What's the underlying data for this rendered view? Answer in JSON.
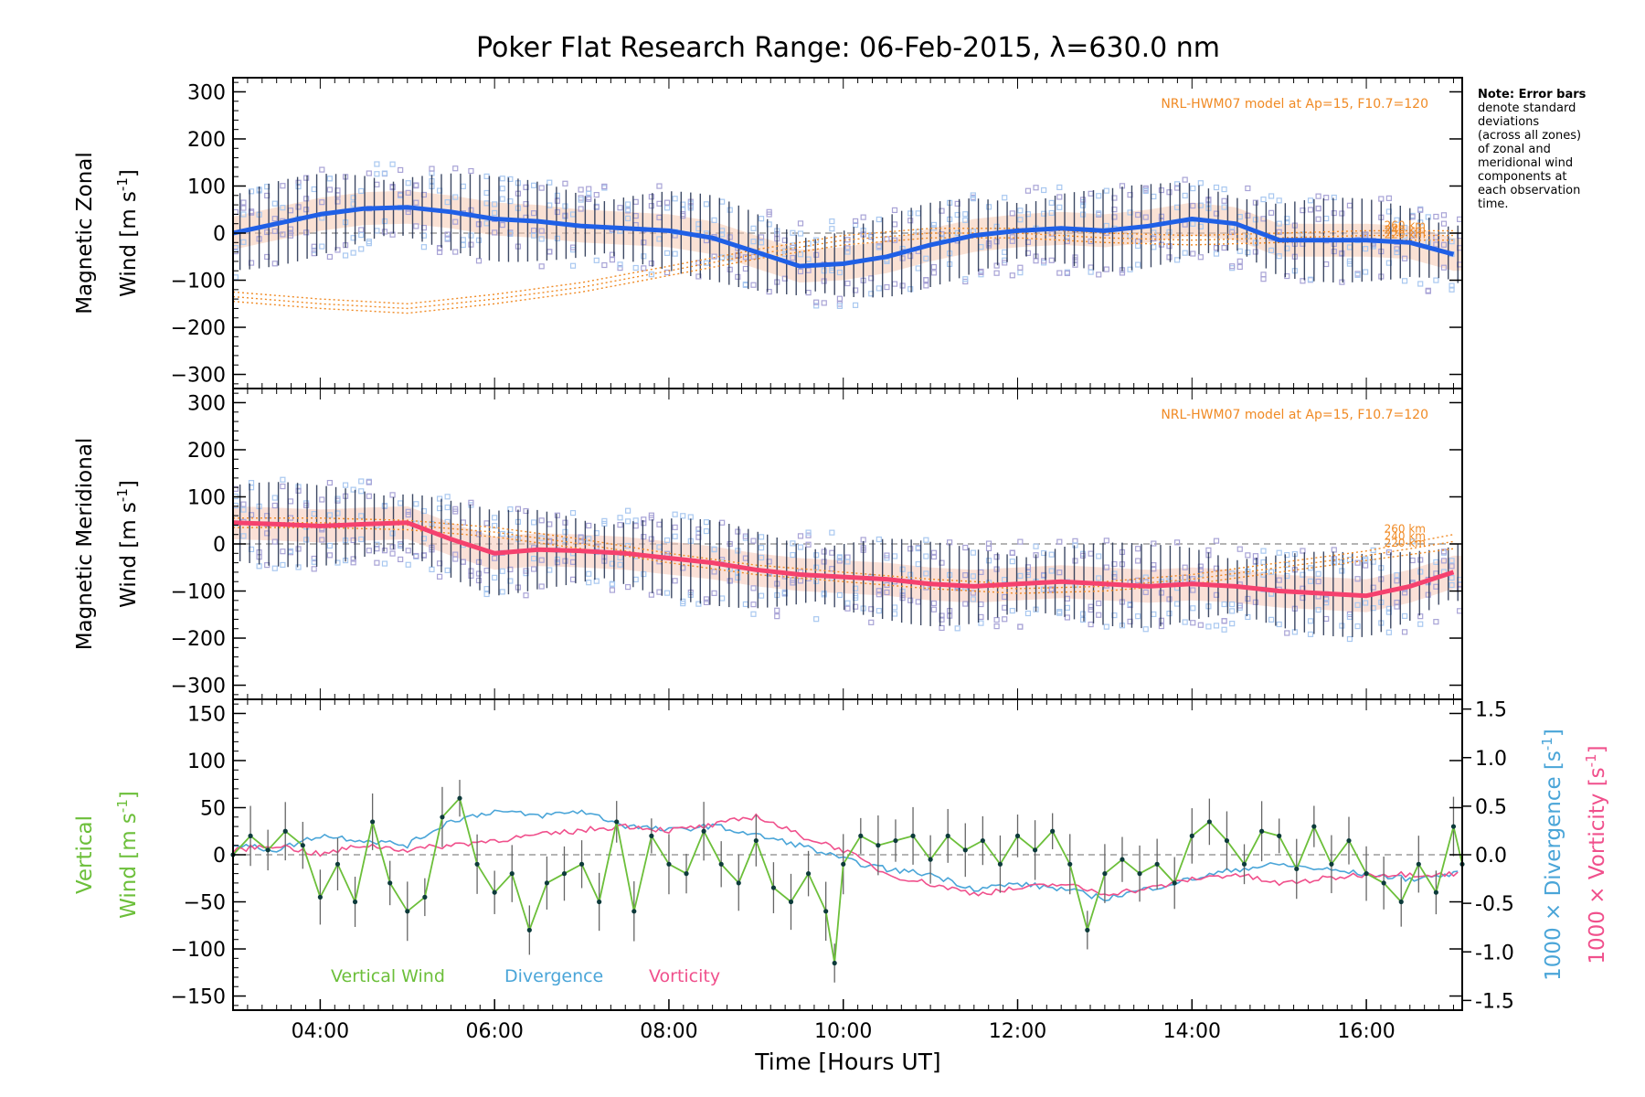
{
  "title": "Poker Flat Research Range: 06-Feb-2015, λ=630.0 nm",
  "note": [
    "Note: Error bars",
    "denote standard",
    "deviations",
    "(across all zones)",
    "of zonal and",
    "meridional wind",
    "components at",
    "each observation",
    "time."
  ],
  "colors": {
    "zonal_mean": "#1f5fe6",
    "meridional_mean": "#f5416e",
    "vertical": "#6cbf3a",
    "divergence": "#4aa5d8",
    "vorticity": "#f0508c",
    "model": "#f08a24",
    "scatter": "#a8a3d6",
    "scatter_light": "#a9c8f0",
    "errbar": "#1c2a4a"
  },
  "chart_data": [
    {
      "type": "line",
      "panel": "zonal",
      "ylabel_line1": "Magnetic Zonal",
      "ylabel_line2": "Wind [m s",
      "ylabel_sup": "-1",
      "ylabel_end": "]",
      "ylim": [
        -330,
        330
      ],
      "yticks": [
        300,
        200,
        100,
        0,
        -100,
        -200,
        -300
      ],
      "xlim": [
        3.0,
        17.1
      ],
      "model_text": "NRL-HWM07 model at Ap=15, F10.7=120",
      "model_alt_labels": [
        "260 km",
        "240 km",
        "220 km"
      ],
      "series": [
        {
          "name": "mean zonal wind",
          "x": [
            3.0,
            3.5,
            4.0,
            4.5,
            5.0,
            5.5,
            6.0,
            6.5,
            7.0,
            7.5,
            8.0,
            8.5,
            9.0,
            9.5,
            10.0,
            10.5,
            11.0,
            11.5,
            12.0,
            12.5,
            13.0,
            13.5,
            14.0,
            14.5,
            15.0,
            15.5,
            16.0,
            16.5,
            17.0
          ],
          "y": [
            0,
            20,
            40,
            52,
            55,
            45,
            30,
            25,
            15,
            10,
            5,
            -10,
            -40,
            -70,
            -65,
            -50,
            -25,
            -5,
            5,
            10,
            5,
            15,
            30,
            20,
            -15,
            -15,
            -15,
            -20,
            -45
          ]
        },
        {
          "name": "model 260 km",
          "x": [
            3.0,
            4.0,
            5.0,
            6.0,
            7.0,
            8.0,
            9.0,
            10.0,
            11.0,
            12.0,
            13.0,
            14.0,
            15.0,
            16.0,
            17.0
          ],
          "y": [
            -125,
            -140,
            -150,
            -130,
            -105,
            -70,
            -35,
            -5,
            10,
            10,
            0,
            -5,
            0,
            5,
            5
          ]
        },
        {
          "name": "model 240 km",
          "x": [
            3.0,
            4.0,
            5.0,
            6.0,
            7.0,
            8.0,
            9.0,
            10.0,
            11.0,
            12.0,
            13.0,
            14.0,
            15.0,
            16.0,
            17.0
          ],
          "y": [
            -135,
            -150,
            -160,
            -140,
            -115,
            -80,
            -45,
            -15,
            0,
            0,
            -10,
            -15,
            -10,
            -5,
            -5
          ]
        },
        {
          "name": "model 220 km",
          "x": [
            3.0,
            4.0,
            5.0,
            6.0,
            7.0,
            8.0,
            9.0,
            10.0,
            11.0,
            12.0,
            13.0,
            14.0,
            15.0,
            16.0,
            17.0
          ],
          "y": [
            -145,
            -160,
            -170,
            -150,
            -125,
            -90,
            -55,
            -25,
            -10,
            -10,
            -20,
            -25,
            -20,
            -15,
            -15
          ]
        }
      ]
    },
    {
      "type": "line",
      "panel": "meridional",
      "ylabel_line1": "Magnetic Meridional",
      "ylabel_line2": "Wind [m s",
      "ylabel_sup": "-1",
      "ylabel_end": "]",
      "ylim": [
        -330,
        330
      ],
      "yticks": [
        300,
        200,
        100,
        0,
        -100,
        -200,
        -300
      ],
      "xlim": [
        3.0,
        17.1
      ],
      "model_text": "NRL-HWM07 model at Ap=15, F10.7=120",
      "model_alt_labels": [
        "260 km",
        "240 km",
        "220 km"
      ],
      "series": [
        {
          "name": "mean meridional wind",
          "x": [
            3.0,
            3.5,
            4.0,
            4.5,
            5.0,
            5.5,
            6.0,
            6.5,
            7.0,
            7.5,
            8.0,
            8.5,
            9.0,
            9.5,
            10.0,
            10.5,
            11.0,
            11.5,
            12.0,
            12.5,
            13.0,
            13.5,
            14.0,
            14.5,
            15.0,
            15.5,
            16.0,
            16.5,
            17.0
          ],
          "y": [
            45,
            42,
            38,
            42,
            45,
            10,
            -20,
            -12,
            -15,
            -20,
            -30,
            -40,
            -55,
            -65,
            -70,
            -75,
            -85,
            -90,
            -85,
            -80,
            -85,
            -90,
            -85,
            -90,
            -100,
            -105,
            -110,
            -90,
            -60
          ]
        },
        {
          "name": "model 260 km",
          "x": [
            3.0,
            4.0,
            5.0,
            6.0,
            7.0,
            8.0,
            9.0,
            10.0,
            11.0,
            12.0,
            13.0,
            14.0,
            15.0,
            16.0,
            17.0
          ],
          "y": [
            55,
            55,
            50,
            35,
            10,
            -20,
            -45,
            -60,
            -75,
            -85,
            -80,
            -65,
            -40,
            -15,
            20
          ]
        },
        {
          "name": "model 240 km",
          "x": [
            3.0,
            4.0,
            5.0,
            6.0,
            7.0,
            8.0,
            9.0,
            10.0,
            11.0,
            12.0,
            13.0,
            14.0,
            15.0,
            16.0,
            17.0
          ],
          "y": [
            45,
            45,
            40,
            25,
            0,
            -30,
            -55,
            -70,
            -85,
            -95,
            -90,
            -75,
            -50,
            -25,
            5
          ]
        },
        {
          "name": "model 220 km",
          "x": [
            3.0,
            4.0,
            5.0,
            6.0,
            7.0,
            8.0,
            9.0,
            10.0,
            11.0,
            12.0,
            13.0,
            14.0,
            15.0,
            16.0,
            17.0
          ],
          "y": [
            35,
            35,
            30,
            15,
            -10,
            -40,
            -65,
            -80,
            -95,
            -105,
            -100,
            -85,
            -60,
            -35,
            -10
          ]
        }
      ]
    },
    {
      "type": "line",
      "panel": "vertical",
      "ylabel_line1": "Vertical",
      "ylabel_line2": "Wind [m s",
      "ylabel_sup": "-1",
      "ylabel_end": "]",
      "ylim": [
        -165,
        165
      ],
      "yticks": [
        150,
        100,
        50,
        0,
        -50,
        -100,
        -150
      ],
      "y2lim": [
        -1.6,
        1.6
      ],
      "y2ticks": [
        1.5,
        1.0,
        0.5,
        0.0,
        -0.5,
        -1.0,
        -1.5
      ],
      "y2label_div": "1000 × Divergence [s",
      "y2label_vor": "1000 × Vorticity [s",
      "y2label_sup": "-1",
      "y2label_end": "]",
      "xlim": [
        3.0,
        17.1
      ],
      "xticks": [
        4,
        6,
        8,
        10,
        12,
        14,
        16
      ],
      "xtick_labels": [
        "04:00",
        "06:00",
        "08:00",
        "10:00",
        "12:00",
        "14:00",
        "16:00"
      ],
      "xlabel": "Time [Hours UT]",
      "legend": [
        "Vertical Wind",
        "Divergence",
        "Vorticity"
      ],
      "series": [
        {
          "name": "Vertical Wind",
          "x": [
            3.0,
            3.2,
            3.4,
            3.6,
            3.8,
            4.0,
            4.2,
            4.4,
            4.6,
            4.8,
            5.0,
            5.2,
            5.4,
            5.6,
            5.8,
            6.0,
            6.2,
            6.4,
            6.6,
            6.8,
            7.0,
            7.2,
            7.4,
            7.6,
            7.8,
            8.0,
            8.2,
            8.4,
            8.6,
            8.8,
            9.0,
            9.2,
            9.4,
            9.6,
            9.8,
            9.9,
            10.0,
            10.2,
            10.4,
            10.6,
            10.8,
            11.0,
            11.2,
            11.4,
            11.6,
            11.8,
            12.0,
            12.2,
            12.4,
            12.6,
            12.8,
            13.0,
            13.2,
            13.4,
            13.6,
            13.8,
            14.0,
            14.2,
            14.4,
            14.6,
            14.8,
            15.0,
            15.2,
            15.4,
            15.6,
            15.8,
            16.0,
            16.2,
            16.4,
            16.6,
            16.8,
            17.0,
            17.1
          ],
          "y": [
            0,
            20,
            5,
            25,
            10,
            -45,
            -10,
            -50,
            35,
            -30,
            -60,
            -45,
            40,
            60,
            -10,
            -40,
            -20,
            -80,
            -30,
            -20,
            -10,
            -50,
            35,
            -60,
            20,
            -10,
            -20,
            25,
            -10,
            -30,
            15,
            -35,
            -50,
            -20,
            -60,
            -115,
            -10,
            20,
            10,
            15,
            20,
            -5,
            20,
            5,
            15,
            -10,
            20,
            5,
            25,
            -10,
            -80,
            -20,
            -5,
            -20,
            -10,
            -30,
            20,
            35,
            15,
            -10,
            25,
            20,
            -15,
            30,
            -10,
            15,
            -20,
            -30,
            -50,
            -10,
            -40,
            30,
            -10
          ]
        },
        {
          "name": "Divergence",
          "x": [
            3.0,
            3.5,
            4.0,
            4.5,
            5.0,
            5.5,
            6.0,
            6.5,
            7.0,
            7.5,
            8.0,
            8.5,
            9.0,
            9.5,
            10.0,
            10.5,
            11.0,
            11.5,
            12.0,
            12.5,
            13.0,
            13.5,
            14.0,
            14.5,
            15.0,
            15.5,
            16.0,
            16.5,
            17.0
          ],
          "y": [
            0.1,
            0.05,
            0.2,
            0.15,
            0.1,
            0.35,
            0.45,
            0.4,
            0.45,
            0.3,
            0.25,
            0.3,
            0.2,
            0.1,
            -0.05,
            -0.15,
            -0.2,
            -0.35,
            -0.3,
            -0.35,
            -0.45,
            -0.35,
            -0.25,
            -0.15,
            -0.1,
            -0.15,
            -0.2,
            -0.25,
            -0.2
          ]
        },
        {
          "name": "Vorticity",
          "x": [
            3.0,
            3.5,
            4.0,
            4.5,
            5.0,
            5.5,
            6.0,
            6.5,
            7.0,
            7.5,
            8.0,
            8.5,
            9.0,
            9.5,
            10.0,
            10.5,
            11.0,
            11.5,
            12.0,
            12.5,
            13.0,
            13.5,
            14.0,
            14.5,
            15.0,
            15.5,
            16.0,
            16.5,
            17.0
          ],
          "y": [
            0.05,
            0.1,
            0.0,
            0.1,
            0.05,
            0.1,
            0.15,
            0.2,
            0.25,
            0.3,
            0.25,
            0.3,
            0.4,
            0.2,
            0.05,
            -0.2,
            -0.3,
            -0.4,
            -0.35,
            -0.3,
            -0.4,
            -0.35,
            -0.25,
            -0.2,
            -0.3,
            -0.25,
            -0.2,
            -0.2,
            -0.2
          ]
        }
      ]
    }
  ]
}
